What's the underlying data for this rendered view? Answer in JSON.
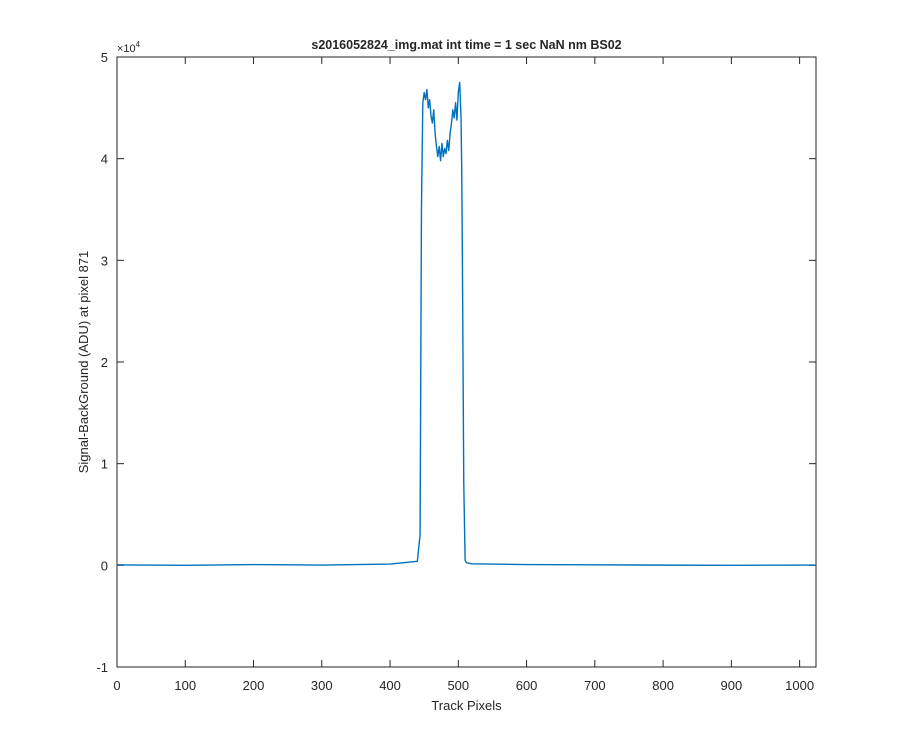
{
  "chart_data": {
    "type": "line",
    "title": "s2016052824_img.mat int time = 1 sec  NaN nm BS02",
    "xlabel": "Track Pixels",
    "ylabel": "Signal-BackGround (ADU) at pixel 871",
    "xlim": [
      0,
      1024
    ],
    "ylim": [
      -10000,
      50000
    ],
    "y_exponent_label": "×10",
    "y_exponent_power": "4",
    "xticks": [
      0,
      100,
      200,
      300,
      400,
      500,
      600,
      700,
      800,
      900,
      1000
    ],
    "xtick_labels": [
      "0",
      "100",
      "200",
      "300",
      "400",
      "500",
      "600",
      "700",
      "800",
      "900",
      "1000"
    ],
    "yticks": [
      -10000,
      0,
      10000,
      20000,
      30000,
      40000,
      50000
    ],
    "ytick_labels": [
      "-1",
      "0",
      "1",
      "2",
      "3",
      "4",
      "5"
    ],
    "grid": false,
    "box": true,
    "series": [
      {
        "color": "#0072BD",
        "x": [
          0,
          100,
          200,
          300,
          400,
          440,
          444,
          446,
          448,
          450,
          452,
          454,
          456,
          458,
          460,
          462,
          464,
          466,
          468,
          470,
          472,
          474,
          476,
          478,
          480,
          482,
          484,
          486,
          488,
          490,
          492,
          494,
          496,
          498,
          500,
          502,
          504,
          505,
          506,
          508,
          510,
          512,
          520,
          600,
          700,
          800,
          900,
          1024
        ],
        "y": [
          50,
          0,
          80,
          30,
          120,
          400,
          3000,
          35000,
          45500,
          46500,
          45800,
          46800,
          45000,
          45800,
          44200,
          43500,
          44800,
          42500,
          41200,
          40200,
          41200,
          39800,
          41500,
          40200,
          41000,
          40500,
          41800,
          40800,
          42500,
          43500,
          44800,
          44000,
          45500,
          43800,
          46500,
          47500,
          44000,
          39000,
          30000,
          8000,
          500,
          250,
          150,
          80,
          50,
          20,
          0,
          30
        ]
      }
    ]
  }
}
